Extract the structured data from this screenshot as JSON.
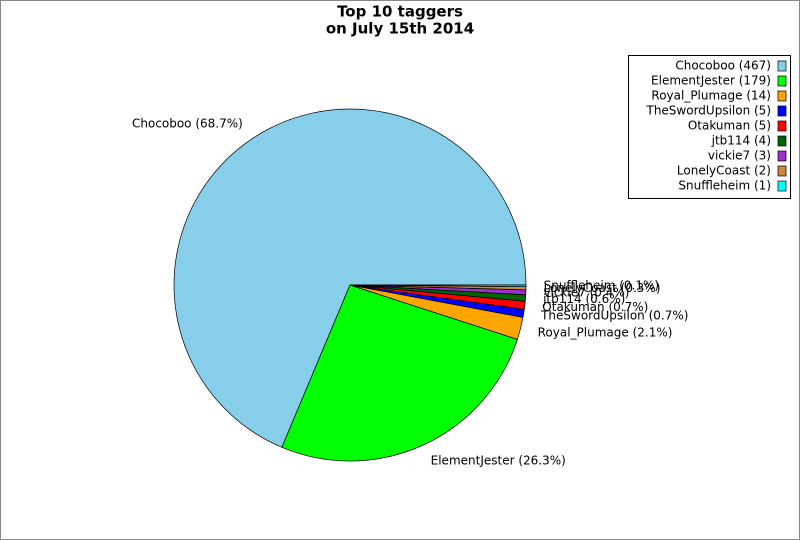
{
  "chart_data": {
    "type": "pie",
    "title": [
      "Top 10 taggers",
      "on July 15th 2014"
    ],
    "categories": [
      "Chocoboo",
      "ElementJester",
      "Royal_Plumage",
      "TheSwordUpsilon",
      "Otakuman",
      "jtb114",
      "vickie7",
      "LonelyCoast",
      "Snuffleheim"
    ],
    "values": [
      467,
      179,
      14,
      5,
      5,
      4,
      3,
      2,
      1
    ],
    "value_labels": [
      "Chocoboo (68.7%)",
      "ElementJester (26.3%)",
      "Royal_Plumage (2.1%)",
      "TheSwordUpsilon (0.7%)",
      "Otakuman (0.7%)",
      "jtb114 (0.6%)",
      "vickie7 (0.4%)",
      "LonelyCoast (0.3%)",
      "Snuffleheim (0.1%)"
    ],
    "legend_labels": [
      "Chocoboo (467)",
      "ElementJester (179)",
      "Royal_Plumage (14)",
      "TheSwordUpsilon (5)",
      "Otakuman (5)",
      "jtb114 (4)",
      "vickie7 (3)",
      "LonelyCoast (2)",
      "Snuffleheim (1)"
    ],
    "colors": [
      "#87ceeb",
      "#00ff00",
      "#ffa500",
      "#0000ff",
      "#ff0000",
      "#006400",
      "#9932cc",
      "#cd853f",
      "#00ffff"
    ],
    "legend": "upper right"
  }
}
